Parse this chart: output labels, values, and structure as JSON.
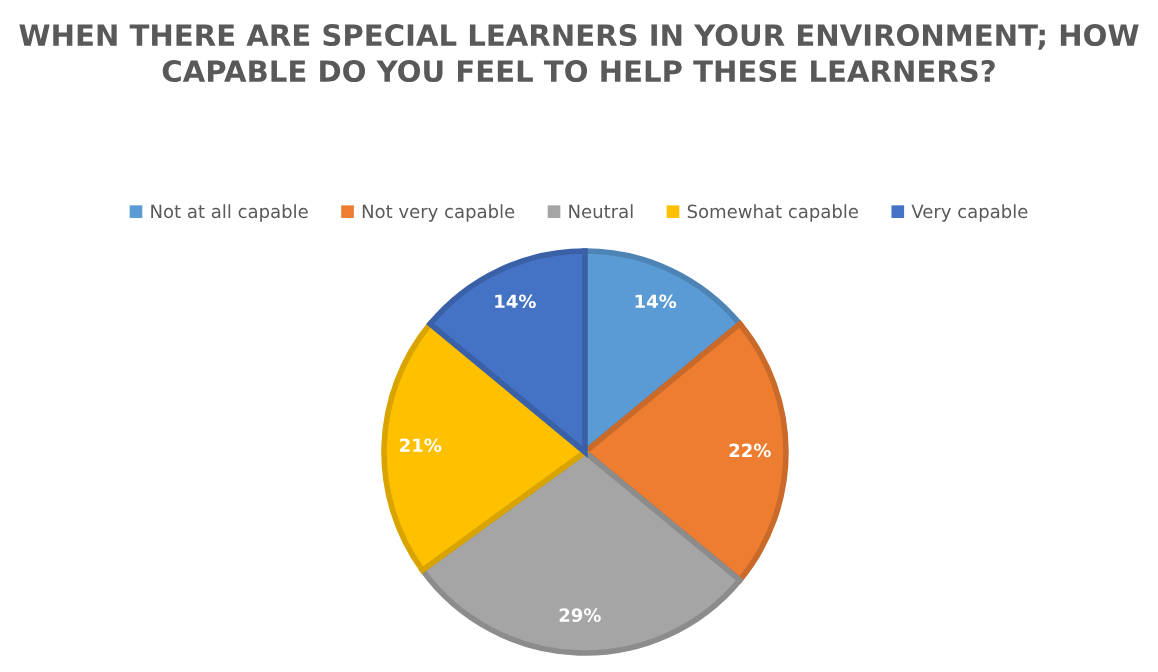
{
  "chart_data": {
    "type": "pie",
    "title": "WHEN THERE ARE SPECIAL LEARNERS IN YOUR ENVIRONMENT; HOW CAPABLE DO YOU FEEL TO HELP THESE LEARNERS?",
    "categories": [
      "Not at all capable",
      "Not very capable",
      "Neutral",
      "Somewhat capable",
      "Very capable"
    ],
    "values": [
      14,
      22,
      29,
      21,
      14
    ],
    "value_labels": [
      "14%",
      "22%",
      "29%",
      "21%",
      "14%"
    ],
    "colors": [
      "#5b9bd5",
      "#ed7d31",
      "#a5a5a5",
      "#ffc000",
      "#4472c4"
    ],
    "legend": "top"
  }
}
